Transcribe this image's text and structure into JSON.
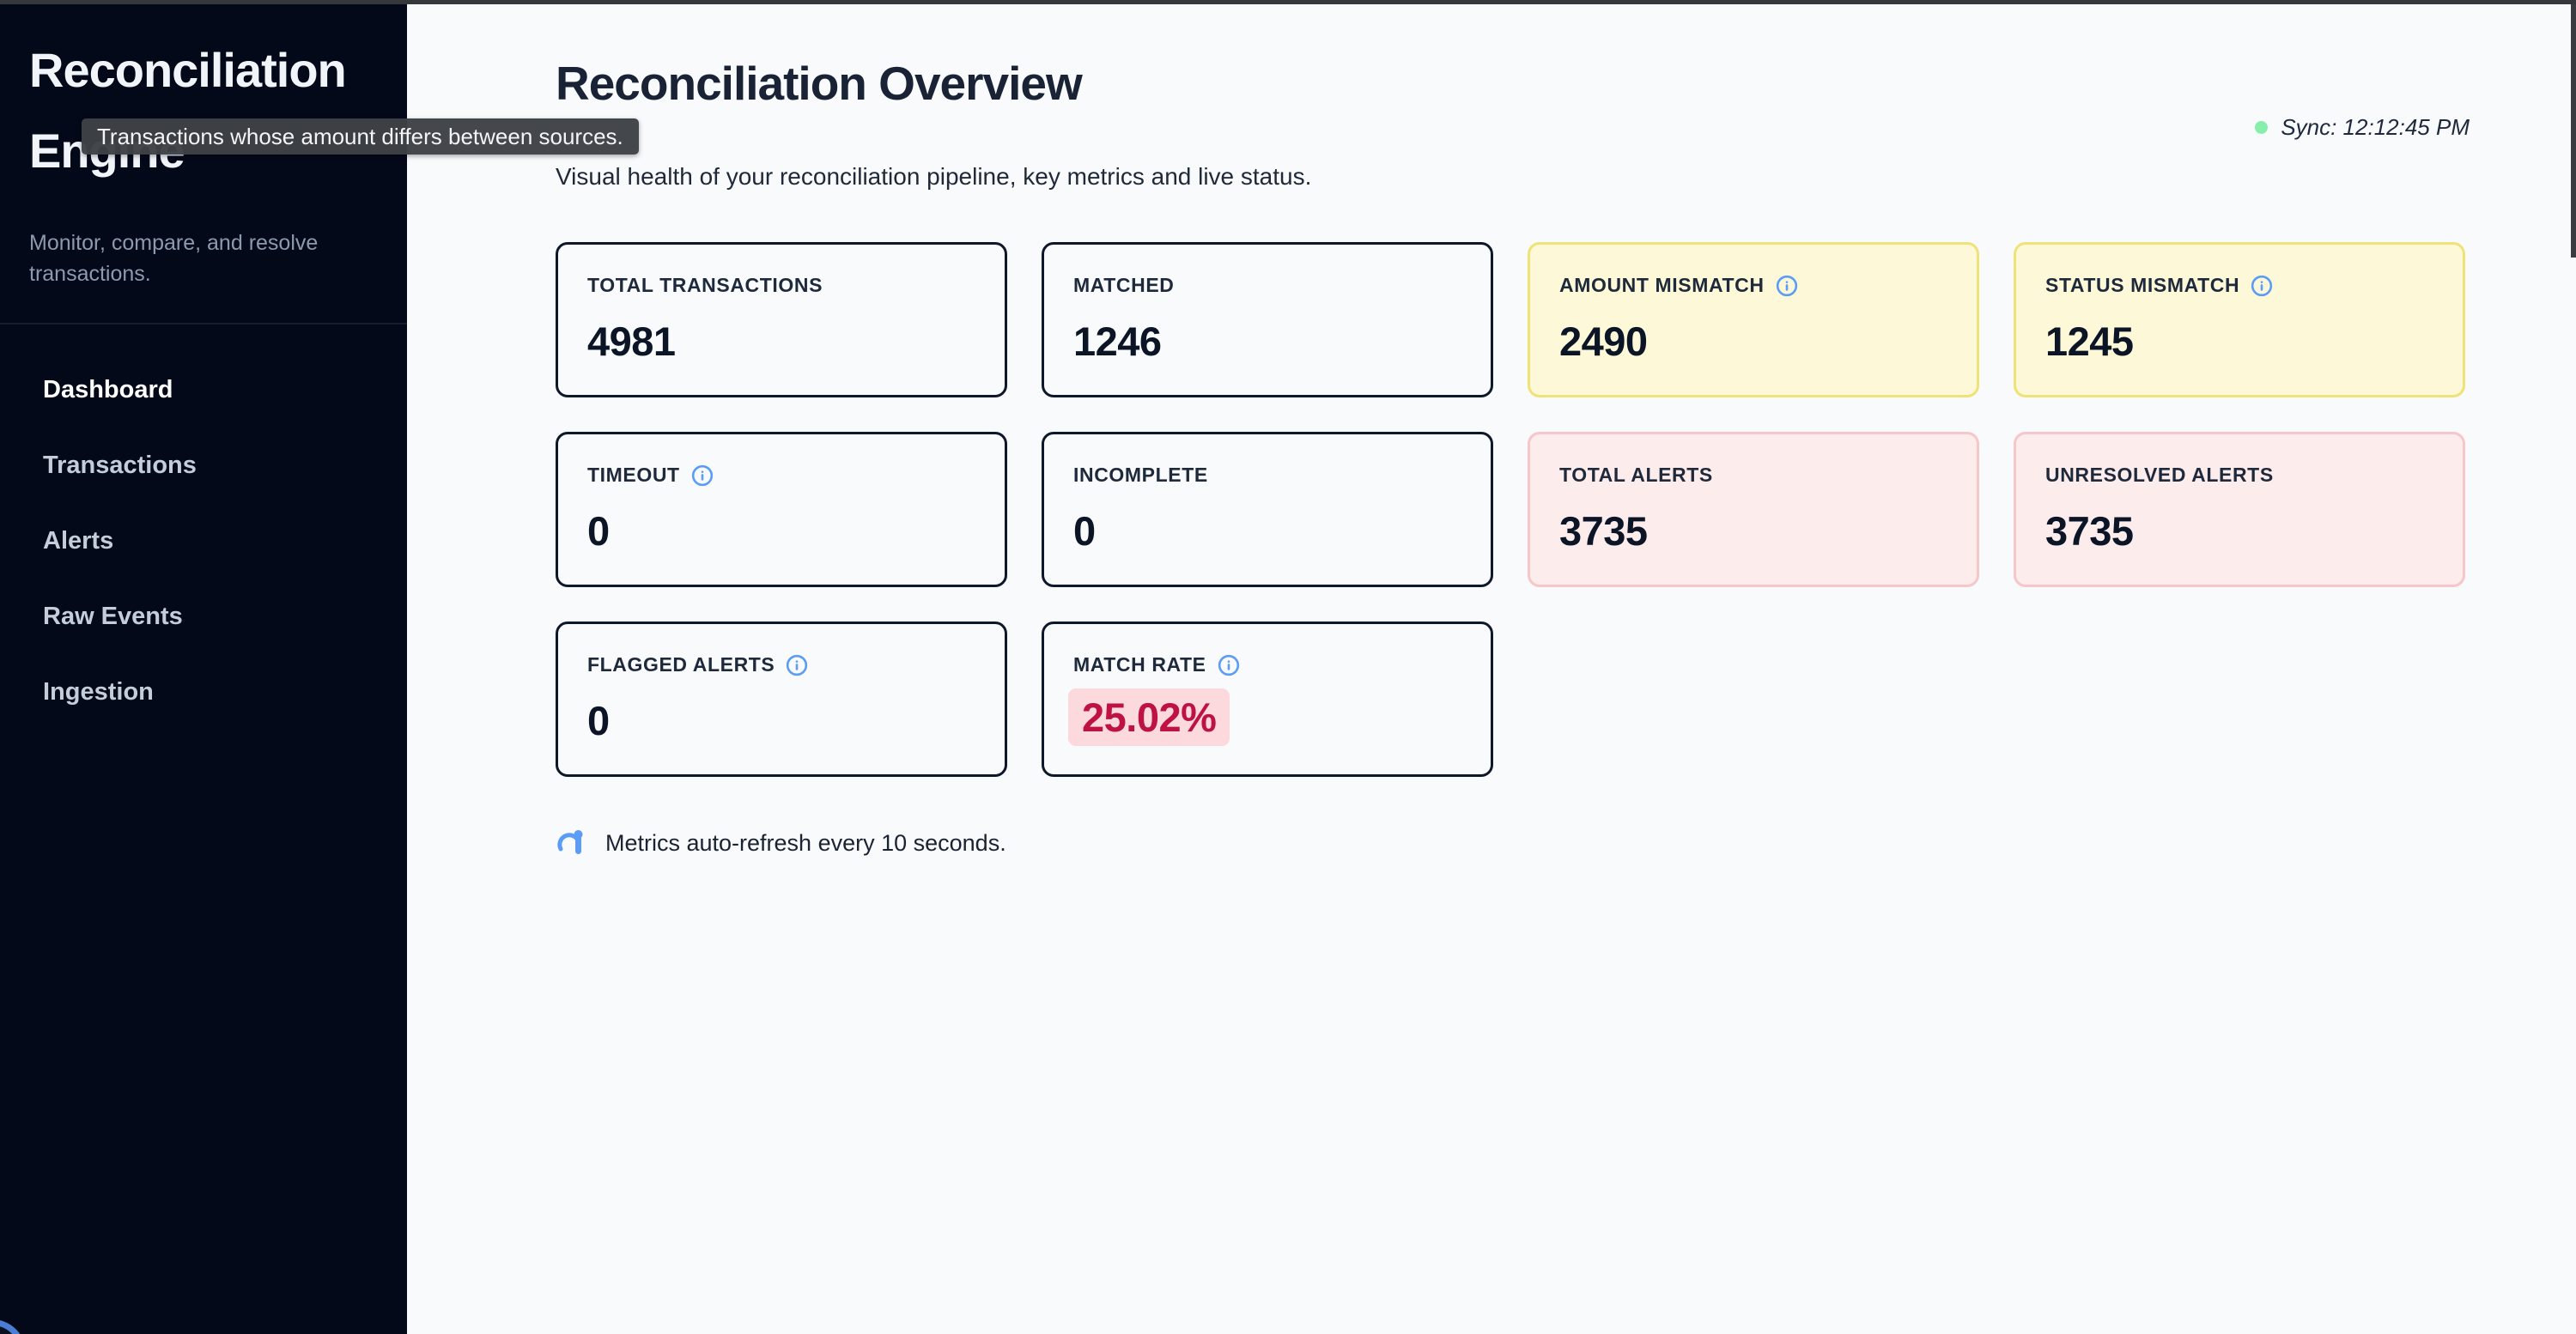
{
  "sidebar": {
    "title": "Reconciliation Engine",
    "subtitle": "Monitor, compare, and resolve transactions.",
    "items": [
      {
        "label": "Dashboard",
        "active": true
      },
      {
        "label": "Transactions",
        "active": false
      },
      {
        "label": "Alerts",
        "active": false
      },
      {
        "label": "Raw Events",
        "active": false
      },
      {
        "label": "Ingestion",
        "active": false
      }
    ]
  },
  "tooltip": {
    "text": "Transactions whose amount differs between sources."
  },
  "header": {
    "title": "Reconciliation Overview",
    "subtitle": "Visual health of your reconciliation pipeline, key metrics and live status.",
    "sync_label": "Sync: 12:12:45 PM"
  },
  "metrics": [
    {
      "label": "TOTAL TRANSACTIONS",
      "value": "4981",
      "variant": "plain",
      "info": false,
      "highlight": false
    },
    {
      "label": "MATCHED",
      "value": "1246",
      "variant": "plain",
      "info": false,
      "highlight": false
    },
    {
      "label": "AMOUNT MISMATCH",
      "value": "2490",
      "variant": "warning",
      "info": true,
      "highlight": false
    },
    {
      "label": "STATUS MISMATCH",
      "value": "1245",
      "variant": "warning",
      "info": true,
      "highlight": false
    },
    {
      "label": "TIMEOUT",
      "value": "0",
      "variant": "plain",
      "info": true,
      "highlight": false
    },
    {
      "label": "INCOMPLETE",
      "value": "0",
      "variant": "plain",
      "info": false,
      "highlight": false
    },
    {
      "label": "TOTAL ALERTS",
      "value": "3735",
      "variant": "danger",
      "info": false,
      "highlight": false
    },
    {
      "label": "UNRESOLVED ALERTS",
      "value": "3735",
      "variant": "danger",
      "info": false,
      "highlight": false
    },
    {
      "label": "FLAGGED ALERTS",
      "value": "0",
      "variant": "plain",
      "info": true,
      "highlight": false
    },
    {
      "label": "MATCH RATE",
      "value": "25.02%",
      "variant": "plain",
      "info": true,
      "highlight": true
    }
  ],
  "footer": {
    "note": "Metrics auto-refresh every 10 seconds."
  },
  "colors": {
    "sidebar_bg": "#04091a",
    "page_bg": "#f8fafc",
    "accent_blue": "#5b9cf6",
    "card_border": "#0f172a",
    "warning_bg": "#fdf9d8",
    "warning_border": "#efe276",
    "danger_bg": "#fdecec",
    "danger_border": "#f6c6cb",
    "match_rate_text": "#be1243",
    "match_rate_bg": "#fbd9dd",
    "sync_dot_green": "#86efac"
  }
}
